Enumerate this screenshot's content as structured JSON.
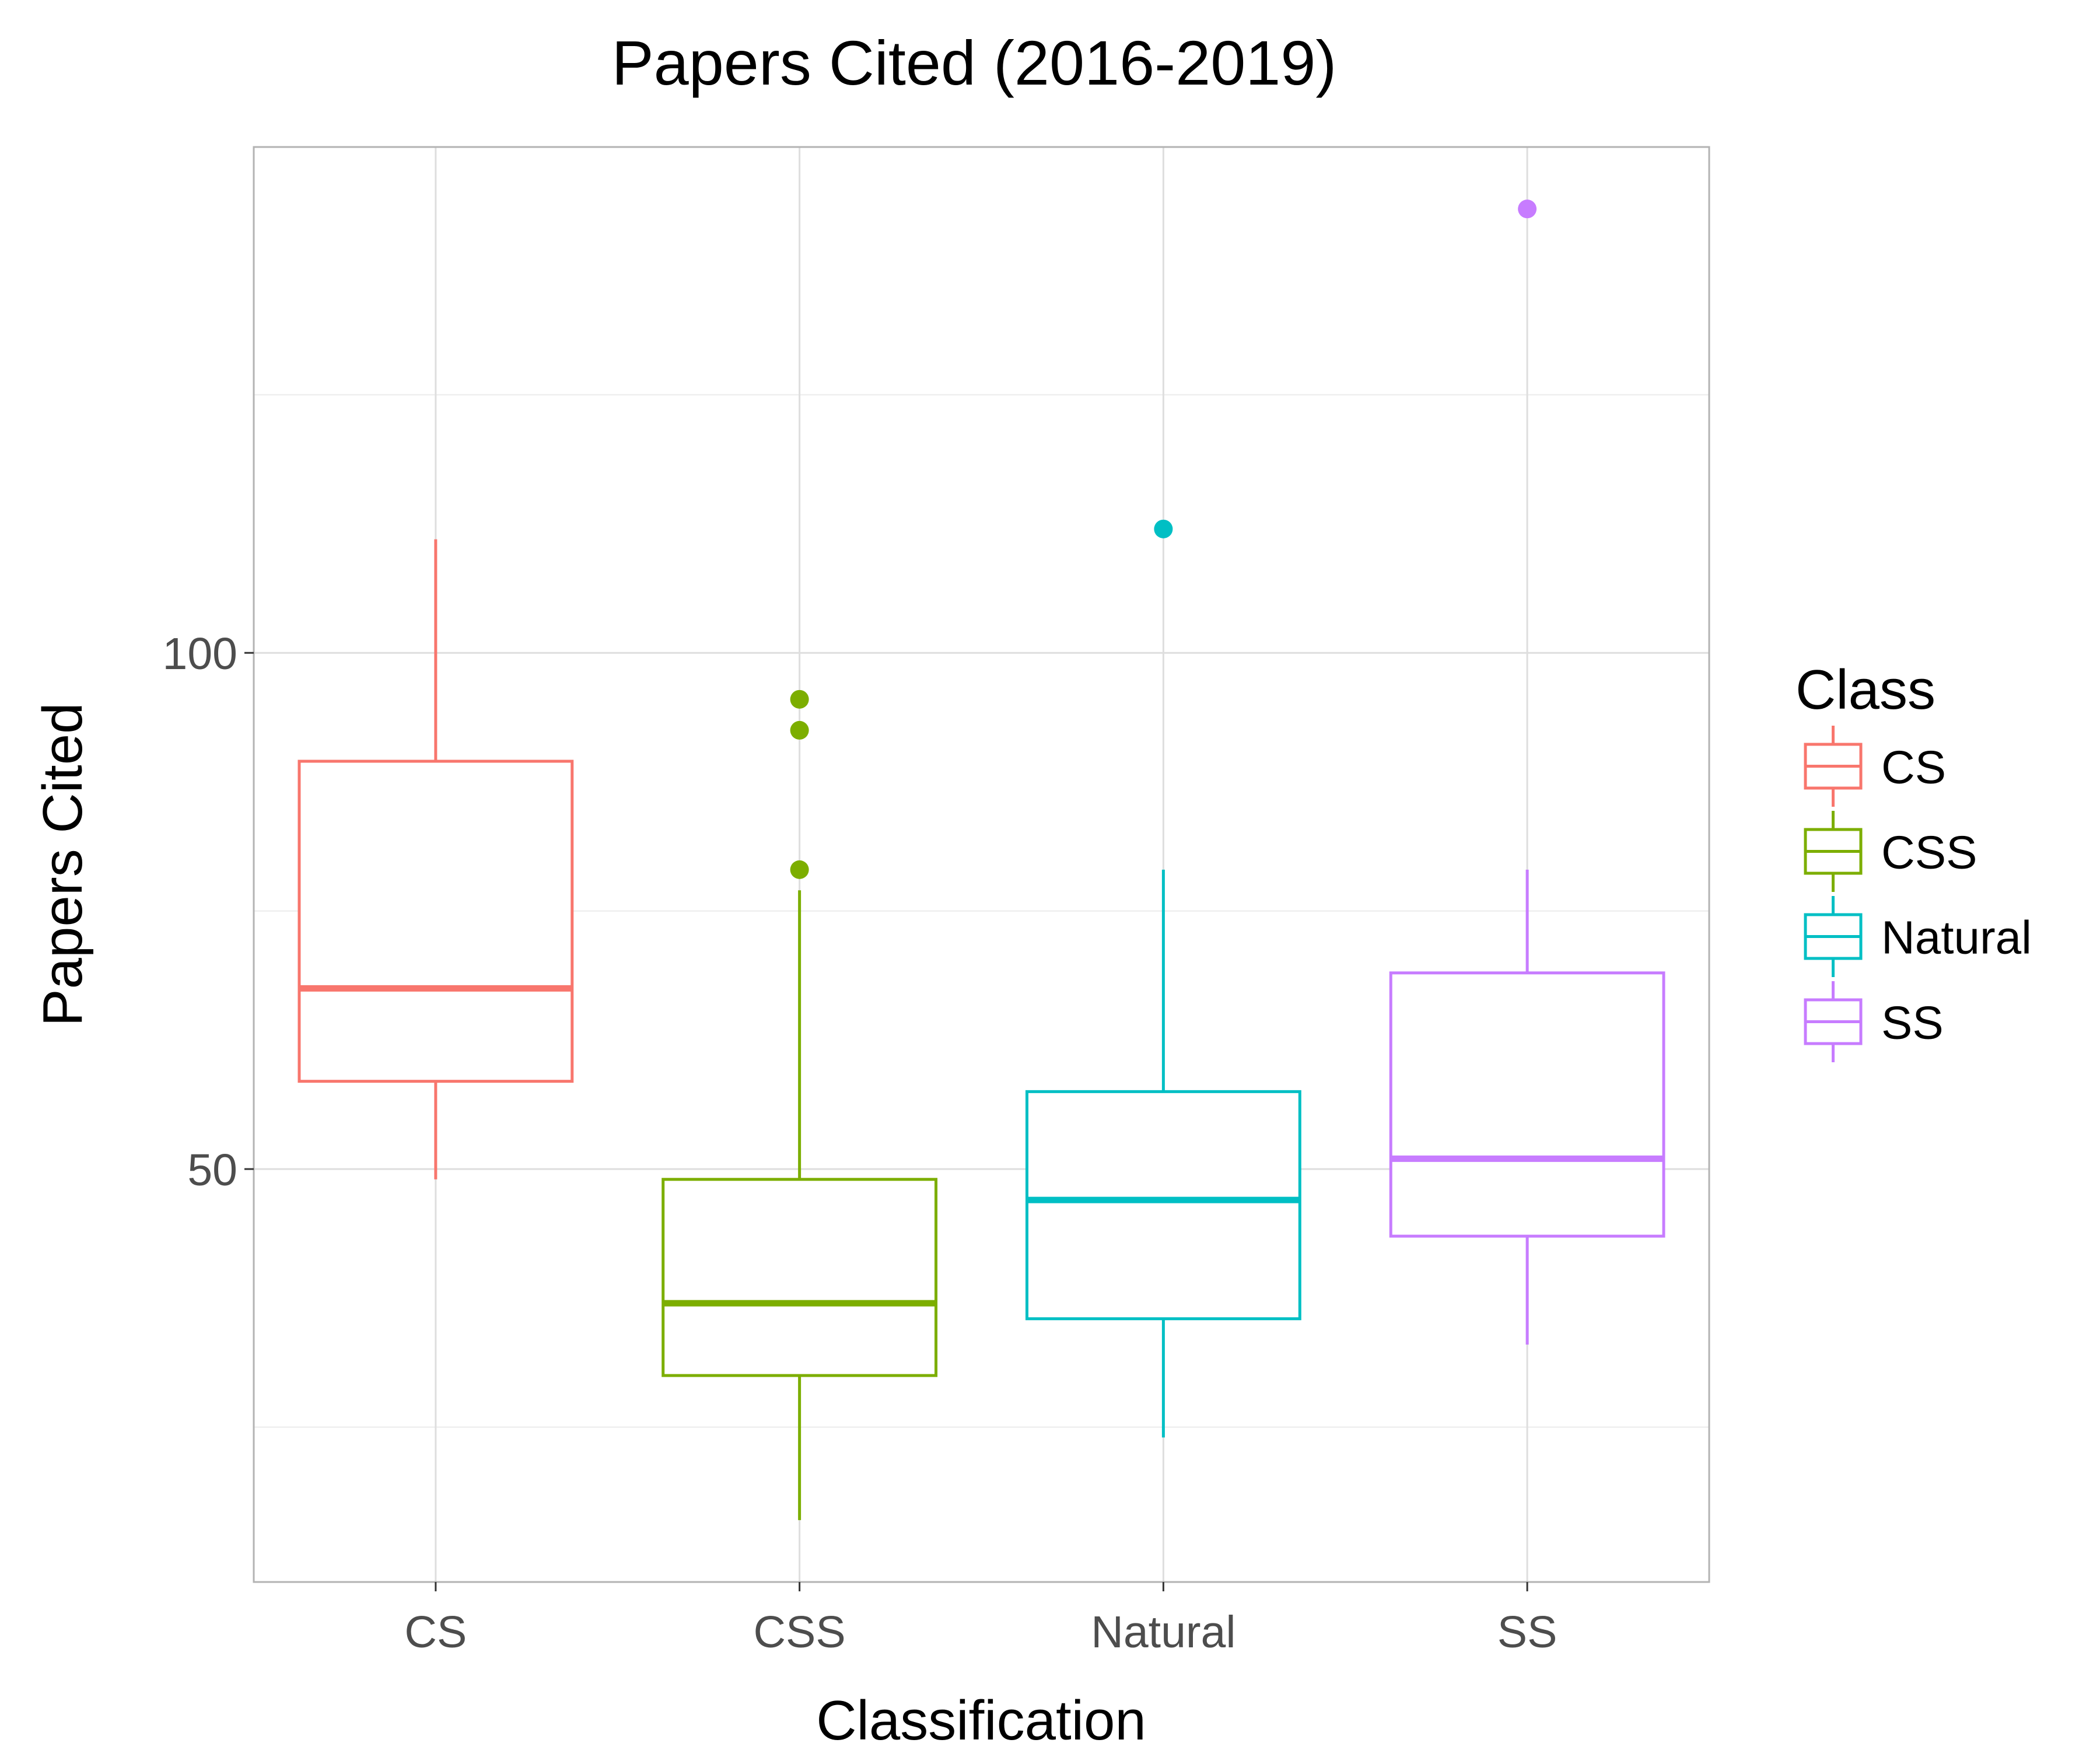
{
  "chart_data": {
    "type": "box",
    "title": "Papers Cited (2016-2019)",
    "xlabel": "Classification",
    "ylabel": "Papers Cited",
    "ylim": [
      10,
      149
    ],
    "yticks": [
      50,
      100
    ],
    "minor_gridlines": [
      25,
      75,
      125
    ],
    "grid": true,
    "legend": {
      "title": "Class",
      "placement": "right",
      "entries": [
        "CS",
        "CSS",
        "Natural",
        "SS"
      ]
    },
    "categories": [
      "CS",
      "CSS",
      "Natural",
      "SS"
    ],
    "series": [
      {
        "name": "CS",
        "color": "#F8766D",
        "whisker_low": 49,
        "q1": 58.5,
        "median": 67.5,
        "q3": 89.5,
        "whisker_high": 111,
        "outliers": []
      },
      {
        "name": "CSS",
        "color": "#7CAE00",
        "whisker_low": 16,
        "q1": 30,
        "median": 37,
        "q3": 49,
        "whisker_high": 77,
        "outliers": [
          79,
          92.5,
          95.5
        ]
      },
      {
        "name": "Natural",
        "color": "#00BFC4",
        "whisker_low": 24,
        "q1": 35.5,
        "median": 47,
        "q3": 57.5,
        "whisker_high": 79,
        "outliers": [
          112
        ]
      },
      {
        "name": "SS",
        "color": "#C77CFF",
        "whisker_low": 33,
        "q1": 43.5,
        "median": 51,
        "q3": 69,
        "whisker_high": 79,
        "outliers": [
          143
        ]
      }
    ]
  }
}
